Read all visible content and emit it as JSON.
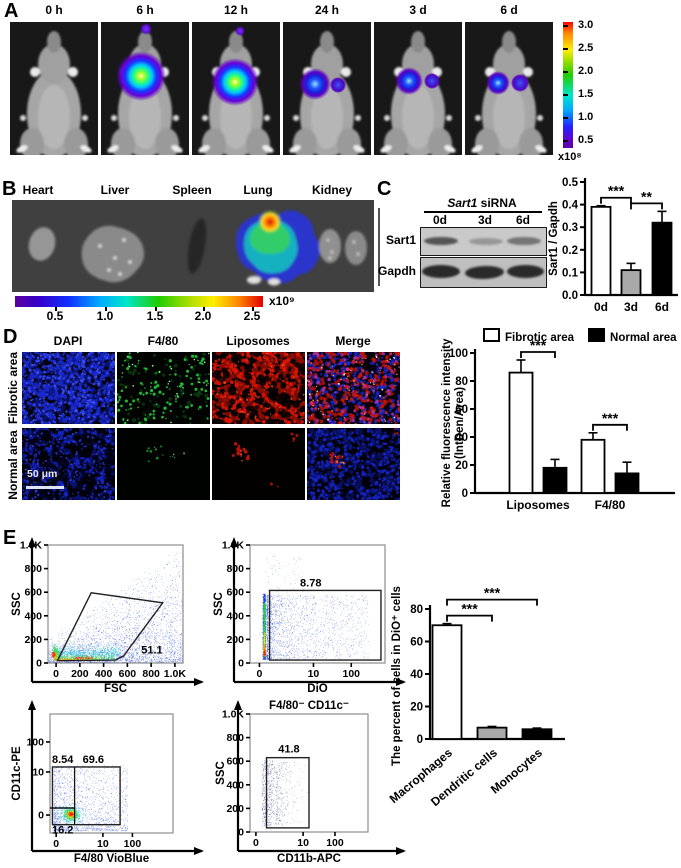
{
  "panelA": {
    "label": "A",
    "timepoints": [
      "0 h",
      "6 h",
      "12 h",
      "24 h",
      "3 d",
      "6 d"
    ],
    "colorbar": {
      "ticks": [
        "3.0",
        "2.5",
        "2.0",
        "1.5",
        "1.0",
        "0.5"
      ],
      "unit": "x10⁸"
    }
  },
  "panelB": {
    "label": "B",
    "organs": [
      "Heart",
      "Liver",
      "Spleen",
      "Lung",
      "Kidney"
    ],
    "colorbar": {
      "ticks": [
        "0.5",
        "1.0",
        "1.5",
        "2.0",
        "2.5"
      ],
      "unit": "x10⁹"
    }
  },
  "panelC": {
    "label": "C",
    "blot": {
      "title_gene": "Sart1",
      "title_rest": " siRNA",
      "lanes": [
        "0d",
        "3d",
        "6d"
      ],
      "row1": "Sart1",
      "row2": "Gapdh"
    }
  },
  "panelD": {
    "label": "D",
    "columns": [
      "DAPI",
      "F4/80",
      "Liposomes",
      "Merge"
    ],
    "row1": "Fibrotic area",
    "row2": "Normal area",
    "scale_bar": "50 μm",
    "legend": [
      {
        "label": "Fibrotic area",
        "color": "#ffffff"
      },
      {
        "label": "Normal area",
        "color": "#000000"
      }
    ]
  },
  "panelE": {
    "label": "E",
    "flow_plots": [
      {
        "id": "flow-fsc-ssc",
        "xlabel": "FSC",
        "ylabel": "SSC",
        "xticks": [
          "0",
          "200",
          "400",
          "600",
          "800",
          "1.0K"
        ],
        "yticks": [
          "1.0K",
          "800",
          "600",
          "400",
          "200",
          "0"
        ],
        "gate_value": "51.1"
      },
      {
        "id": "flow-dio-ssc",
        "xlabel": "DiO",
        "ylabel": "SSC",
        "xticks": [
          "0",
          "10",
          "100"
        ],
        "yticks": [
          "1.0K",
          "800",
          "600",
          "400",
          "200",
          "0"
        ],
        "gate_value": "8.78"
      },
      {
        "id": "flow-f480-cd11c",
        "xlabel": "F4/80 VioBlue",
        "ylabel": "CD11c-PE",
        "xticks": [
          "0",
          "10",
          "100"
        ],
        "yticks": [
          "100",
          "10",
          "0"
        ],
        "quadrant_values": {
          "upper_left": "8.54",
          "upper_right": "69.6",
          "lower_left": "16.2"
        }
      },
      {
        "id": "flow-cd11b-ssc",
        "title": "F4/80⁻ CD11c⁻",
        "xlabel": "CD11b-APC",
        "ylabel": "SSC",
        "xticks": [
          "0",
          "10",
          "100"
        ],
        "yticks": [
          "1.0K",
          "800",
          "600",
          "400",
          "200",
          "0"
        ],
        "gate_value": "41.8"
      }
    ]
  },
  "chart_data": [
    {
      "id": "chart-sart1",
      "type": "bar",
      "categories": [
        "0d",
        "3d",
        "6d"
      ],
      "values": [
        0.39,
        0.11,
        0.32
      ],
      "errors": [
        0.005,
        0.03,
        0.05
      ],
      "bar_colors": [
        "#ffffff",
        "#a9a9a9",
        "#000000"
      ],
      "ylabel": "Sart1 / Gapdh",
      "ylim": [
        0,
        0.5
      ],
      "yticks": [
        0,
        0.1,
        0.2,
        0.3,
        0.4,
        0.5
      ],
      "significance": [
        {
          "from": 0,
          "to": 1,
          "label": "***"
        },
        {
          "from": 1,
          "to": 2,
          "label": "**"
        }
      ]
    },
    {
      "id": "chart-fluorescence",
      "type": "grouped_bar",
      "categories": [
        "Liposomes",
        "F4/80"
      ],
      "series": [
        {
          "name": "Fibrotic area",
          "color": "#ffffff",
          "values": [
            86,
            38
          ],
          "errors": [
            9,
            5
          ]
        },
        {
          "name": "Normal area",
          "color": "#000000",
          "values": [
            18,
            14
          ],
          "errors": [
            6,
            8
          ]
        }
      ],
      "ylabel": "Relative fluorescence intensity",
      "ylabel2": "(IntDen/Area)",
      "ylim": [
        0,
        100
      ],
      "yticks": [
        0,
        20,
        40,
        60,
        80,
        100
      ],
      "significance": [
        {
          "group": 0,
          "label": "***"
        },
        {
          "group": 1,
          "label": "***"
        }
      ]
    },
    {
      "id": "chart-dio-percent",
      "type": "bar",
      "categories": [
        "Macrophages",
        "Dendritic cells",
        "Monocytes"
      ],
      "values": [
        70,
        7,
        6
      ],
      "errors": [
        1,
        0.7,
        0.7
      ],
      "bar_colors": [
        "#ffffff",
        "#a9a9a9",
        "#000000"
      ],
      "ylabel": "The percent of cells in DiO⁺ cells",
      "ylim": [
        0,
        80
      ],
      "yticks": [
        0,
        20,
        40,
        60,
        80
      ],
      "rotate_labels": true,
      "significance": [
        {
          "from": 0,
          "to": 1,
          "label": "***"
        },
        {
          "from": 0,
          "to": 2,
          "label": "***"
        }
      ]
    }
  ]
}
